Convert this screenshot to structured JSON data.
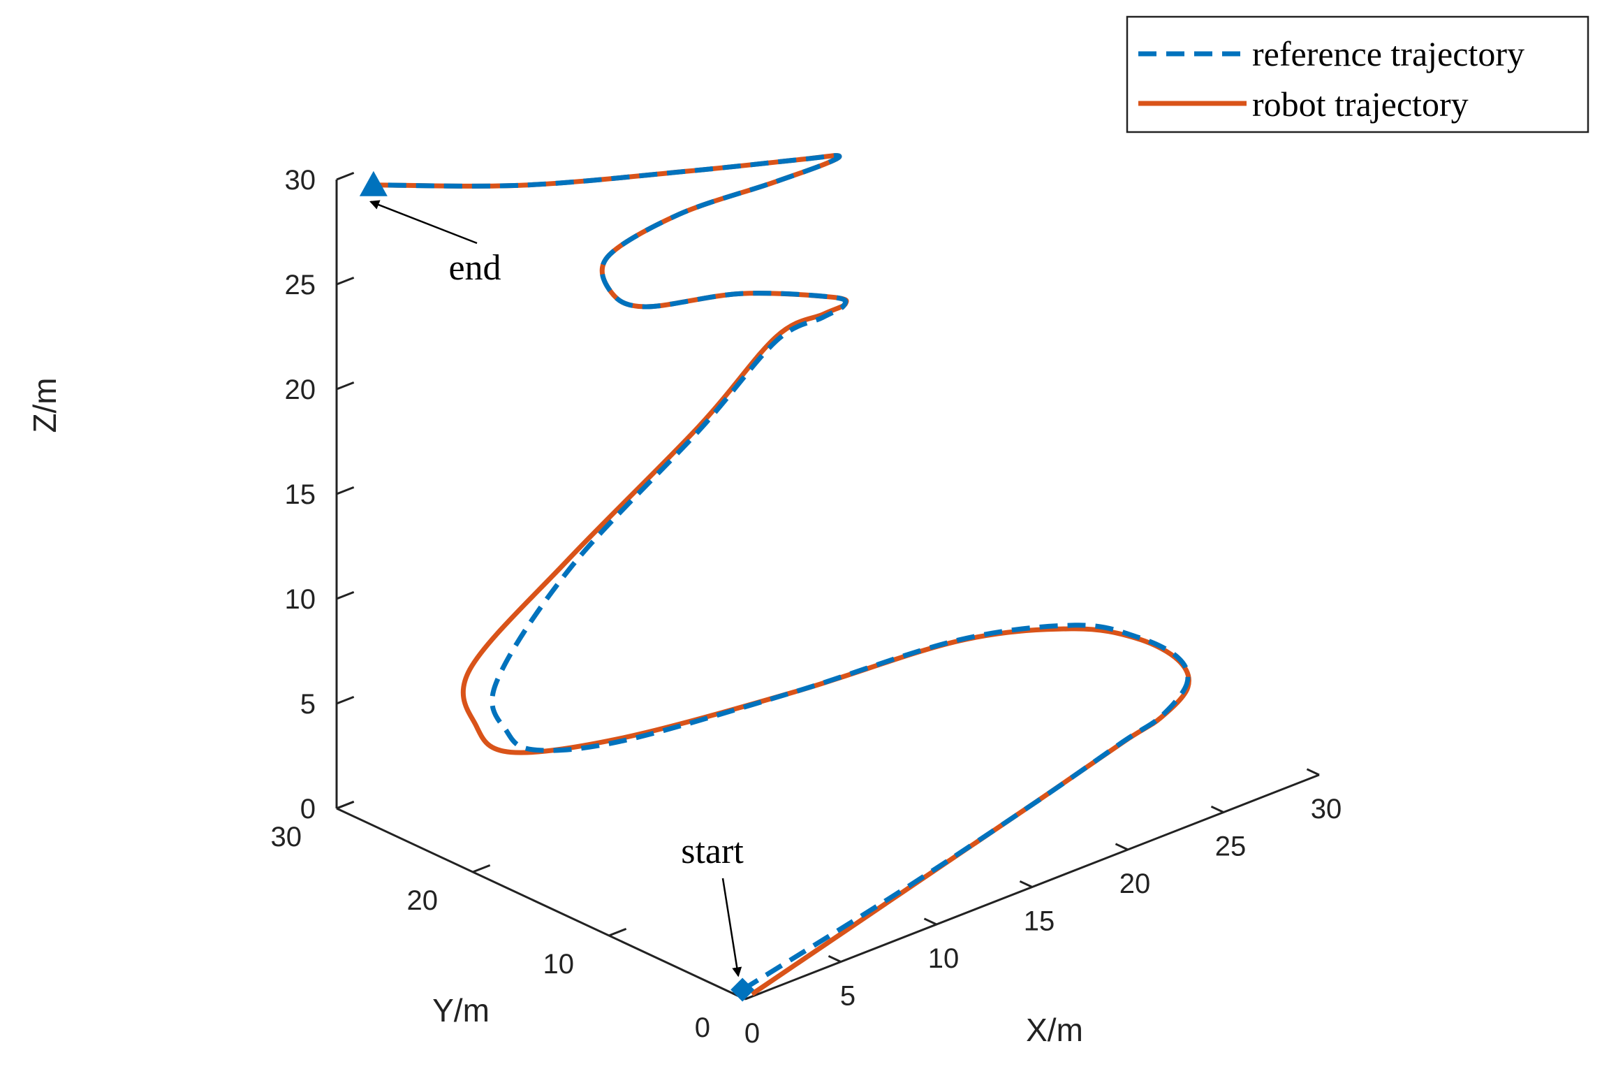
{
  "chart_data": {
    "type": "line",
    "projection": "3d",
    "xlabel": "X/m",
    "ylabel": "Y/m",
    "zlabel": "Z/m",
    "xlim": [
      0,
      30
    ],
    "ylim": [
      0,
      30
    ],
    "zlim": [
      0,
      30
    ],
    "x_ticks": [
      {
        "value": 0,
        "label": "0"
      },
      {
        "value": 5,
        "label": "5"
      },
      {
        "value": 10,
        "label": "10"
      },
      {
        "value": 15,
        "label": "15"
      },
      {
        "value": 20,
        "label": "20"
      },
      {
        "value": 25,
        "label": "25"
      },
      {
        "value": 30,
        "label": "30"
      }
    ],
    "y_ticks": [
      {
        "value": 0,
        "label": "0"
      },
      {
        "value": 10,
        "label": "10"
      },
      {
        "value": 20,
        "label": "20"
      },
      {
        "value": 30,
        "label": "30"
      }
    ],
    "z_ticks": [
      {
        "value": 0,
        "label": "0"
      },
      {
        "value": 5,
        "label": "5"
      },
      {
        "value": 10,
        "label": "10"
      },
      {
        "value": 15,
        "label": "15"
      },
      {
        "value": 20,
        "label": "20"
      },
      {
        "value": 25,
        "label": "25"
      },
      {
        "value": 30,
        "label": "30"
      }
    ],
    "grid": false,
    "legend_position": "top-right",
    "series": [
      {
        "name": "reference trajectory",
        "color": "#0072BD",
        "style": "dashed",
        "points": [
          [
            0.5,
            0.9,
            0
          ],
          [
            9,
            0.9,
            1.8
          ],
          [
            16,
            1.2,
            3.3
          ],
          [
            20.8,
            1.5,
            4.4
          ],
          [
            22.8,
            1.5,
            4.9
          ],
          [
            24.8,
            2.4,
            5.5
          ],
          [
            25.6,
            4.2,
            5.9
          ],
          [
            25.3,
            6.8,
            6.2
          ],
          [
            24.0,
            9.5,
            6.4
          ],
          [
            20,
            12.5,
            6.2
          ],
          [
            13,
            14.6,
            5.6
          ],
          [
            6,
            17.2,
            5.0
          ],
          [
            3,
            19.5,
            4.9
          ],
          [
            2.5,
            21,
            5.5
          ],
          [
            3.2,
            22.8,
            7.0
          ],
          [
            8,
            24,
            10.5
          ],
          [
            14,
            23,
            15.2
          ],
          [
            17.5,
            22.3,
            18.4
          ],
          [
            18.7,
            20.6,
            19.6
          ],
          [
            18.9,
            19.3,
            20.5
          ],
          [
            17.8,
            18.6,
            21.5
          ],
          [
            14,
            20,
            22.6
          ],
          [
            9.6,
            20.8,
            23.3
          ],
          [
            8.5,
            21.8,
            24.1
          ],
          [
            9.4,
            23.3,
            25.0
          ],
          [
            13.6,
            24.0,
            25.3
          ],
          [
            17.4,
            22.7,
            25.8
          ],
          [
            18.5,
            20.2,
            27.1
          ],
          [
            17.9,
            18.3,
            28.3
          ],
          [
            15.4,
            17.4,
            29.3
          ],
          [
            11,
            19.7,
            29.6
          ],
          [
            6,
            24.7,
            29.2
          ],
          [
            2,
            30.1,
            29
          ]
        ]
      },
      {
        "name": "robot trajectory",
        "color": "#D95319",
        "style": "solid",
        "points": [
          [
            0.5,
            0.2,
            0
          ],
          [
            9,
            0.5,
            2.0
          ],
          [
            16,
            1.0,
            3.45
          ],
          [
            20.8,
            1.4,
            4.45
          ],
          [
            22.8,
            1.5,
            4.85
          ],
          [
            24.7,
            2.2,
            5.4
          ],
          [
            25.5,
            4.0,
            5.85
          ],
          [
            25.2,
            6.7,
            6.2
          ],
          [
            23.8,
            9.5,
            6.3
          ],
          [
            20,
            12.4,
            6.2
          ],
          [
            13,
            14.6,
            5.6
          ],
          [
            6,
            17.4,
            5.05
          ],
          [
            2,
            20,
            5.0
          ],
          [
            1.6,
            22,
            5.8
          ],
          [
            2.7,
            24,
            7.5
          ],
          [
            8,
            24.2,
            10.8
          ],
          [
            14,
            23.1,
            15.3
          ],
          [
            17.5,
            22.3,
            18.6
          ],
          [
            18.7,
            20.5,
            19.8
          ],
          [
            18.9,
            19.2,
            20.6
          ],
          [
            17.8,
            18.6,
            21.5
          ],
          [
            14,
            20,
            22.6
          ],
          [
            9.6,
            20.8,
            23.3
          ],
          [
            8.5,
            21.8,
            24.1
          ],
          [
            9.4,
            23.3,
            25.0
          ],
          [
            13.6,
            24.0,
            25.3
          ],
          [
            17.4,
            22.7,
            25.8
          ],
          [
            18.5,
            20.2,
            27.1
          ],
          [
            17.9,
            18.3,
            28.3
          ],
          [
            15.4,
            17.4,
            29.3
          ],
          [
            11,
            19.7,
            29.6
          ],
          [
            6,
            24.7,
            29.2
          ],
          [
            2,
            30.1,
            29
          ]
        ]
      }
    ],
    "markers": [
      {
        "name": "start-marker",
        "shape": "diamond",
        "color": "#0072BD",
        "point": [
          0.5,
          0.9,
          0
        ]
      },
      {
        "name": "end-marker",
        "shape": "triangle",
        "color": "#0072BD",
        "point": [
          2,
          30.1,
          29
        ]
      }
    ],
    "annotations": [
      {
        "name": "start",
        "text": "start",
        "points_to": [
          0.5,
          0.9,
          0
        ]
      },
      {
        "name": "end",
        "text": "end",
        "points_to": [
          2,
          30.1,
          29
        ]
      }
    ]
  }
}
